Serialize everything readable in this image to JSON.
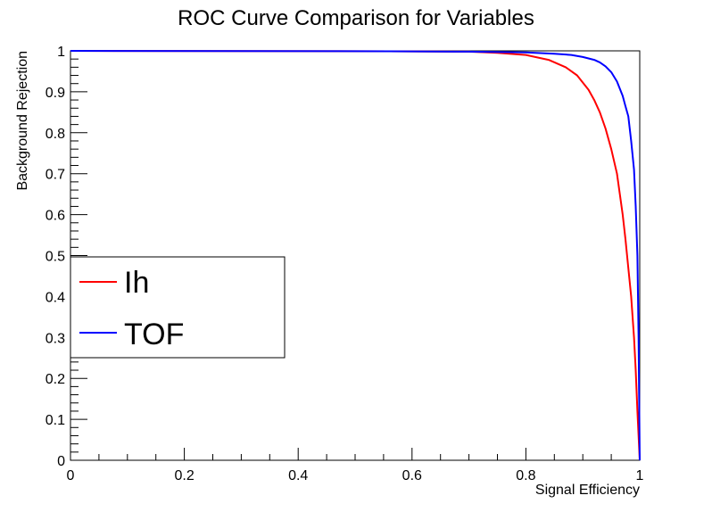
{
  "chart_data": {
    "type": "line",
    "title": "ROC Curve Comparison for Variables",
    "xlabel": "Signal Efficiency",
    "ylabel": "Background Rejection",
    "xlim": [
      0,
      1
    ],
    "ylim": [
      0,
      1
    ],
    "x_ticks": [
      "0",
      "0.2",
      "0.4",
      "0.6",
      "0.8",
      "1"
    ],
    "y_ticks": [
      "0",
      "0.1",
      "0.2",
      "0.3",
      "0.4",
      "0.5",
      "0.6",
      "0.7",
      "0.8",
      "0.9",
      "1"
    ],
    "grid": false,
    "legend_position": "left-middle",
    "series": [
      {
        "name": "Ih",
        "color": "#ff0000",
        "x": [
          0,
          0.56,
          0.7,
          0.75,
          0.8,
          0.84,
          0.87,
          0.89,
          0.91,
          0.92,
          0.93,
          0.94,
          0.95,
          0.96,
          0.965,
          0.97,
          0.975,
          0.98,
          0.985,
          0.99,
          0.993,
          0.996,
          1.0
        ],
        "y": [
          1.0,
          0.999,
          0.998,
          0.995,
          0.99,
          0.978,
          0.96,
          0.94,
          0.905,
          0.88,
          0.85,
          0.81,
          0.76,
          0.7,
          0.65,
          0.6,
          0.54,
          0.47,
          0.4,
          0.3,
          0.22,
          0.12,
          0.0
        ]
      },
      {
        "name": "TOF",
        "color": "#0000ff",
        "x": [
          0,
          0.56,
          0.7,
          0.8,
          0.85,
          0.88,
          0.9,
          0.92,
          0.93,
          0.94,
          0.95,
          0.96,
          0.97,
          0.975,
          0.98,
          0.985,
          0.99,
          0.993,
          0.996,
          0.998,
          1.0
        ],
        "y": [
          1.0,
          0.999,
          0.998,
          0.996,
          0.993,
          0.99,
          0.985,
          0.978,
          0.972,
          0.962,
          0.948,
          0.925,
          0.89,
          0.865,
          0.84,
          0.78,
          0.71,
          0.62,
          0.5,
          0.3,
          0.0
        ]
      }
    ]
  }
}
